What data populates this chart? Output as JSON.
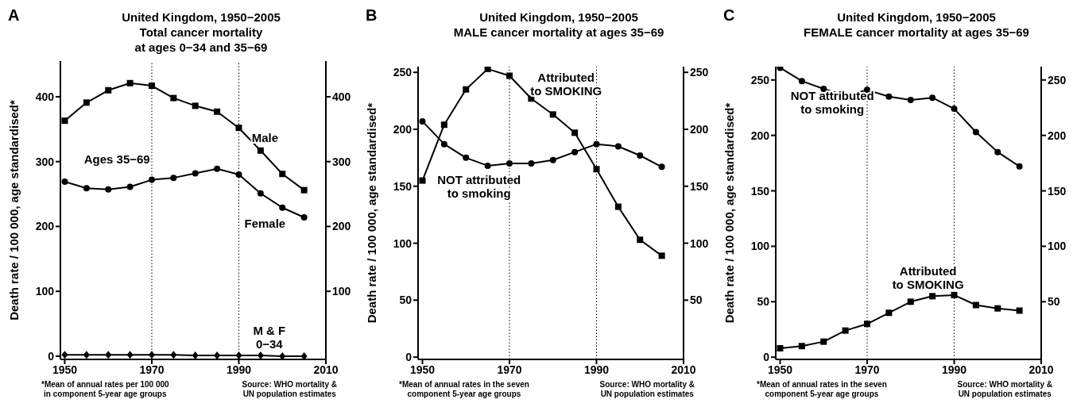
{
  "chart_data": [
    {
      "type": "line",
      "title": "United Kingdom, 1950−2005\nTotal cancer mortality\nat ages 0−34 and 35−69",
      "ylabel": "Death rate / 100 000, age standardised*",
      "annotations": [
        "A",
        "*Mean of annual rates per 100 000\nin component 5-year age groups",
        "Source: WHO mortality &\nUN population estimates",
        "Ages 35−69"
      ],
      "x": [
        1950,
        1955,
        1960,
        1965,
        1970,
        1975,
        1980,
        1985,
        1990,
        1995,
        2000,
        2005
      ],
      "series": [
        {
          "name": "Male",
          "color": "#000000",
          "marker": "square",
          "values": [
            363,
            391,
            410,
            421,
            417,
            398,
            386,
            377,
            352,
            317,
            281,
            256
          ]
        },
        {
          "name": "Female",
          "color": "#000000",
          "marker": "circle",
          "values": [
            269,
            259,
            257,
            261,
            272,
            275,
            282,
            289,
            280,
            251,
            229,
            214
          ]
        },
        {
          "name": "M & F\n0−34",
          "color": "#000000",
          "marker": "diamond",
          "values": [
            2,
            2,
            2,
            2,
            2,
            2,
            1,
            1,
            1,
            1,
            0,
            0
          ]
        }
      ],
      "xlim": [
        1949,
        2010
      ],
      "xticks": [
        1950,
        1970,
        1990,
        2010
      ],
      "ylim": [
        -5,
        455
      ],
      "yticks": [
        0,
        100,
        200,
        300,
        400
      ],
      "y2lim": [
        -5,
        455
      ],
      "y2ticks": [
        100,
        200,
        300,
        400
      ],
      "ref_lines": [
        {
          "axis": "x",
          "value": 1970,
          "color": "#000000",
          "line_style": "dotted"
        },
        {
          "axis": "x",
          "value": 1990,
          "color": "#000000",
          "line_style": "dotted"
        }
      ]
    },
    {
      "type": "line",
      "title": "United Kingdom, 1950−2005\nMALE cancer mortality at ages 35−69",
      "ylabel": "Death rate / 100 000, age standardised*",
      "annotations": [
        "B",
        "*Mean of annual rates in the seven\ncomponent 5-year age groups",
        "Source: WHO mortality &\nUN population estimates"
      ],
      "x": [
        1950,
        1955,
        1960,
        1965,
        1970,
        1975,
        1980,
        1985,
        1990,
        1995,
        2000,
        2005
      ],
      "series": [
        {
          "name": "Attributed\nto SMOKING",
          "color": "#000000",
          "marker": "square",
          "values": [
            155,
            204,
            235,
            253,
            247,
            227,
            213,
            197,
            165,
            132,
            103,
            89
          ]
        },
        {
          "name": "NOT attributed\nto smoking",
          "color": "#000000",
          "marker": "circle",
          "values": [
            207,
            187,
            175,
            168,
            170,
            170,
            173,
            180,
            187,
            185,
            177,
            167
          ]
        }
      ],
      "xlim": [
        1949,
        2010
      ],
      "xticks": [
        1950,
        1970,
        1990,
        2010
      ],
      "ylim": [
        -2,
        255
      ],
      "yticks": [
        0,
        50,
        100,
        150,
        200,
        250
      ],
      "y2lim": [
        -2,
        255
      ],
      "y2ticks": [
        50,
        100,
        150,
        200,
        250
      ],
      "ref_lines": [
        {
          "axis": "x",
          "value": 1970,
          "color": "#000000",
          "line_style": "dotted"
        },
        {
          "axis": "x",
          "value": 1990,
          "color": "#000000",
          "line_style": "dotted"
        }
      ]
    },
    {
      "type": "line",
      "title": "United Kingdom, 1950−2005\nFEMALE cancer mortality at ages 35−69",
      "ylabel": "Death rate / 100 000, age standardised*",
      "annotations": [
        "C",
        "*Mean of annual rates in the seven\ncomponent 5-year age groups",
        "Source: WHO mortality &\nUN population estimates"
      ],
      "x": [
        1950,
        1955,
        1960,
        1965,
        1970,
        1975,
        1980,
        1985,
        1990,
        1995,
        2000,
        2005
      ],
      "series": [
        {
          "name": "NOT attributed\nto smoking",
          "color": "#000000",
          "marker": "circle",
          "values": [
            261,
            249,
            242,
            236,
            241,
            235,
            232,
            234,
            224,
            203,
            185,
            172
          ]
        },
        {
          "name": "Attributed\nto SMOKING",
          "color": "#000000",
          "marker": "square",
          "values": [
            8,
            10,
            14,
            24,
            30,
            40,
            50,
            55,
            56,
            47,
            44,
            42
          ]
        }
      ],
      "xlim": [
        1949,
        2010
      ],
      "xticks": [
        1950,
        1970,
        1990,
        2010
      ],
      "ylim": [
        -2,
        262
      ],
      "yticks": [
        0,
        50,
        100,
        150,
        200,
        250
      ],
      "y2lim": [
        -2,
        262
      ],
      "y2ticks": [
        50,
        100,
        150,
        200,
        250
      ],
      "ref_lines": [
        {
          "axis": "x",
          "value": 1970,
          "color": "#000000",
          "line_style": "dotted"
        },
        {
          "axis": "x",
          "value": 1990,
          "color": "#000000",
          "line_style": "dotted"
        }
      ]
    }
  ]
}
